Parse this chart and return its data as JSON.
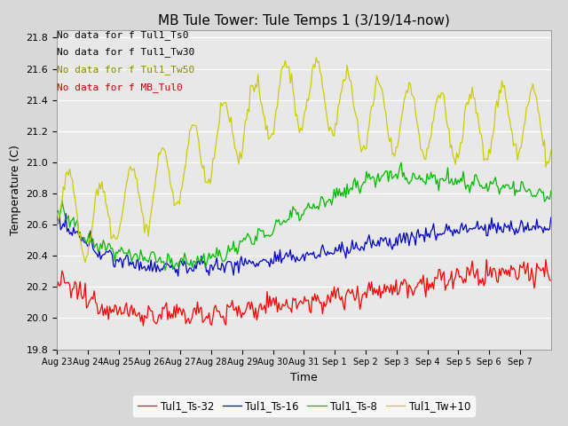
{
  "title": "MB Tule Tower: Tule Temps 1 (3/19/14-now)",
  "xlabel": "Time",
  "ylabel": "Temperature (C)",
  "ylim": [
    19.8,
    21.85
  ],
  "yticks": [
    19.8,
    20.0,
    20.2,
    20.4,
    20.6,
    20.8,
    21.0,
    21.2,
    21.4,
    21.6,
    21.8
  ],
  "xtick_labels": [
    "Aug 23",
    "Aug 24",
    "Aug 25",
    "Aug 26",
    "Aug 27",
    "Aug 28",
    "Aug 29",
    "Aug 30",
    "Aug 31",
    "Sep 1",
    "Sep 2",
    "Sep 3",
    "Sep 4",
    "Sep 5",
    "Sep 6",
    "Sep 7"
  ],
  "no_data_texts": [
    "No data for f Tul1_Ts0",
    "No data for f Tul1_Tw30",
    "No data for f Tul1_Tw50",
    "No data for f MB_Tul0"
  ],
  "no_data_colors": [
    "black",
    "black",
    "#888800",
    "#cc0000"
  ],
  "legend_entries": [
    "Tul1_Ts-32",
    "Tul1_Ts-16",
    "Tul1_Ts-8",
    "Tul1_Tw+10"
  ],
  "legend_colors": [
    "#ff0000",
    "#0000cc",
    "#00bb00",
    "#cccc00"
  ],
  "background_color": "#d8d8d8",
  "plot_bg_color": "#e8e8e8",
  "grid_color": "#ffffff",
  "title_fontsize": 11,
  "axis_fontsize": 9,
  "tick_fontsize": 8,
  "nodata_fontsize": 8
}
